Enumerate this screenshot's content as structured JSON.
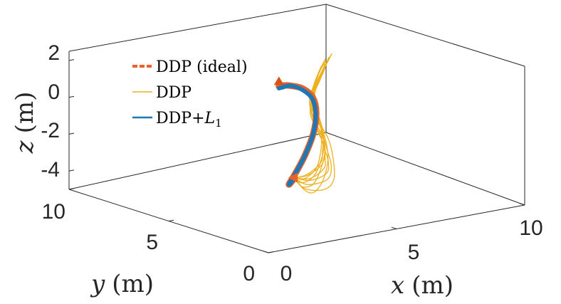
{
  "chart_data": {
    "type": "line",
    "subtype": "3d-trajectory",
    "axes": {
      "x": {
        "label_var": "x",
        "label_unit": "(m)",
        "range": [
          0,
          10
        ],
        "ticks": [
          "0",
          "5",
          "10"
        ]
      },
      "y": {
        "label_var": "y",
        "label_unit": "(m)",
        "range": [
          0,
          10
        ],
        "ticks": [
          "0",
          "5",
          "10"
        ]
      },
      "z": {
        "label_var": "z",
        "label_unit": "(m)",
        "range": [
          -5,
          2.5
        ],
        "ticks": [
          "2",
          "0",
          "-2",
          "-4"
        ]
      }
    },
    "grid": false,
    "box": true,
    "legend": {
      "placement": "top-left",
      "entries": [
        {
          "text": "DDP (ideal)",
          "color": "#E8622A",
          "style": "dashed-thick"
        },
        {
          "text": "DDP",
          "color": "#EDB120",
          "style": "solid-thin"
        },
        {
          "text_prefix": "DDP+",
          "text_script": "L",
          "text_sub": "1",
          "color": "#1F77B4",
          "style": "solid-thick"
        }
      ]
    },
    "series": [
      {
        "name": "DDP (ideal)",
        "color": "#E8622A",
        "x": [
          4.6,
          4.2,
          4.0,
          4.3,
          5.0,
          5.8,
          6.3,
          6.4,
          6.0,
          5.2,
          4.6,
          4.3
        ],
        "y": [
          4.6,
          4.3,
          4.1,
          4.2,
          4.6,
          5.2,
          5.7,
          6.0,
          6.0,
          5.6,
          5.2,
          5.0
        ],
        "z": [
          -3.7,
          -3.8,
          -3.7,
          -3.3,
          -2.6,
          -1.8,
          -1.0,
          -0.3,
          0.3,
          0.8,
          1.1,
          1.2
        ],
        "start_marker": "triangle-left",
        "end_marker": "triangle-up"
      },
      {
        "name": "DDP+L1",
        "color": "#1F77B4",
        "x": [
          4.6,
          4.2,
          4.0,
          4.3,
          5.0,
          5.8,
          6.2,
          6.3,
          5.9,
          5.2,
          4.6,
          4.3
        ],
        "y": [
          4.6,
          4.3,
          4.1,
          4.2,
          4.6,
          5.2,
          5.6,
          5.9,
          5.9,
          5.6,
          5.2,
          5.0
        ],
        "z": [
          -3.7,
          -3.8,
          -3.7,
          -3.3,
          -2.6,
          -1.8,
          -1.0,
          -0.3,
          0.3,
          0.8,
          1.0,
          1.1
        ]
      },
      {
        "name": "DDP",
        "color": "#EDB120",
        "runs": [
          {
            "x": [
              4.6,
              5.0,
              6.0,
              6.6,
              6.8,
              6.7,
              6.4,
              6.2,
              6.6,
              7.2
            ],
            "y": [
              4.6,
              4.6,
              4.9,
              5.2,
              5.5,
              5.6,
              5.7,
              5.9,
              6.2,
              6.6
            ],
            "z": [
              -3.7,
              -4.4,
              -4.8,
              -4.5,
              -3.5,
              -2.5,
              -1.5,
              -0.5,
              0.3,
              1.0
            ]
          },
          {
            "x": [
              4.6,
              5.1,
              6.1,
              6.5,
              6.5,
              6.4,
              6.1,
              6.2,
              6.8,
              7.4
            ],
            "y": [
              4.6,
              4.6,
              4.9,
              5.2,
              5.4,
              5.5,
              5.6,
              5.9,
              6.3,
              6.7
            ],
            "z": [
              -3.7,
              -4.2,
              -4.3,
              -3.8,
              -3.0,
              -2.2,
              -1.2,
              -0.3,
              0.4,
              0.9
            ]
          },
          {
            "x": [
              4.6,
              5.2,
              6.0,
              6.3,
              6.3,
              6.2,
              6.0,
              6.3,
              6.9,
              7.5
            ],
            "y": [
              4.6,
              4.6,
              4.8,
              5.1,
              5.3,
              5.4,
              5.6,
              5.9,
              6.3,
              6.8
            ],
            "z": [
              -3.7,
              -4.0,
              -3.9,
              -3.4,
              -2.8,
              -2.0,
              -1.0,
              -0.2,
              0.5,
              1.0
            ]
          },
          {
            "x": [
              4.6,
              5.2,
              5.9,
              6.1,
              6.2,
              6.1,
              6.0,
              6.4,
              7.0,
              7.7
            ],
            "y": [
              4.6,
              4.6,
              4.8,
              5.0,
              5.2,
              5.4,
              5.6,
              6.0,
              6.4,
              6.9
            ],
            "z": [
              -3.7,
              -3.9,
              -3.6,
              -3.1,
              -2.5,
              -1.8,
              -0.9,
              0.0,
              0.6,
              1.1
            ]
          },
          {
            "x": [
              4.6,
              5.1,
              5.8,
              6.1,
              6.2,
              6.1,
              6.1,
              6.5,
              7.2,
              7.8
            ],
            "y": [
              4.6,
              4.6,
              4.8,
              5.0,
              5.2,
              5.4,
              5.7,
              6.0,
              6.5,
              7.0
            ],
            "z": [
              -3.7,
              -3.7,
              -3.4,
              -2.9,
              -2.3,
              -1.5,
              -0.7,
              0.1,
              0.7,
              1.2
            ]
          },
          {
            "x": [
              4.6,
              5.0,
              5.7,
              6.0,
              6.2,
              6.2,
              6.2,
              6.6,
              7.3,
              8.0
            ],
            "y": [
              4.6,
              4.5,
              4.7,
              5.0,
              5.2,
              5.4,
              5.7,
              6.1,
              6.6,
              7.1
            ],
            "z": [
              -3.7,
              -3.6,
              -3.2,
              -2.7,
              -2.0,
              -1.2,
              -0.5,
              0.3,
              0.9,
              1.3
            ]
          },
          {
            "x": [
              4.6,
              4.9,
              5.5,
              5.9,
              6.2,
              6.3,
              6.3,
              6.7,
              7.3,
              7.9
            ],
            "y": [
              4.6,
              4.5,
              4.7,
              5.0,
              5.3,
              5.5,
              5.8,
              6.2,
              6.6,
              7.0
            ],
            "z": [
              -3.7,
              -3.8,
              -3.5,
              -3.0,
              -2.3,
              -1.5,
              -0.6,
              0.2,
              0.8,
              1.3
            ]
          },
          {
            "x": [
              4.6,
              4.8,
              5.4,
              5.9,
              6.3,
              6.4,
              6.3,
              6.6,
              7.1,
              7.6
            ],
            "y": [
              4.6,
              4.5,
              4.7,
              5.0,
              5.3,
              5.6,
              5.9,
              6.2,
              6.6,
              6.9
            ],
            "z": [
              -3.7,
              -4.0,
              -3.9,
              -3.4,
              -2.6,
              -1.7,
              -0.8,
              0.1,
              0.7,
              1.2
            ]
          },
          {
            "x": [
              4.6,
              4.8,
              5.4,
              6.0,
              6.4,
              6.5,
              6.4,
              6.6,
              7.0,
              7.5
            ],
            "y": [
              4.6,
              4.5,
              4.7,
              5.1,
              5.4,
              5.7,
              5.9,
              6.2,
              6.5,
              6.8
            ],
            "z": [
              -3.7,
              -4.2,
              -4.3,
              -3.8,
              -3.0,
              -2.0,
              -1.0,
              -0.1,
              0.6,
              1.1
            ]
          },
          {
            "x": [
              4.6,
              4.9,
              5.5,
              6.1,
              6.6,
              6.7,
              6.5,
              6.6,
              7.0,
              7.4
            ],
            "y": [
              4.6,
              4.5,
              4.8,
              5.1,
              5.5,
              5.8,
              6.0,
              6.2,
              6.4,
              6.7
            ],
            "z": [
              -3.7,
              -4.4,
              -4.8,
              -4.4,
              -3.5,
              -2.4,
              -1.3,
              -0.3,
              0.4,
              1.0
            ]
          }
        ]
      }
    ]
  }
}
